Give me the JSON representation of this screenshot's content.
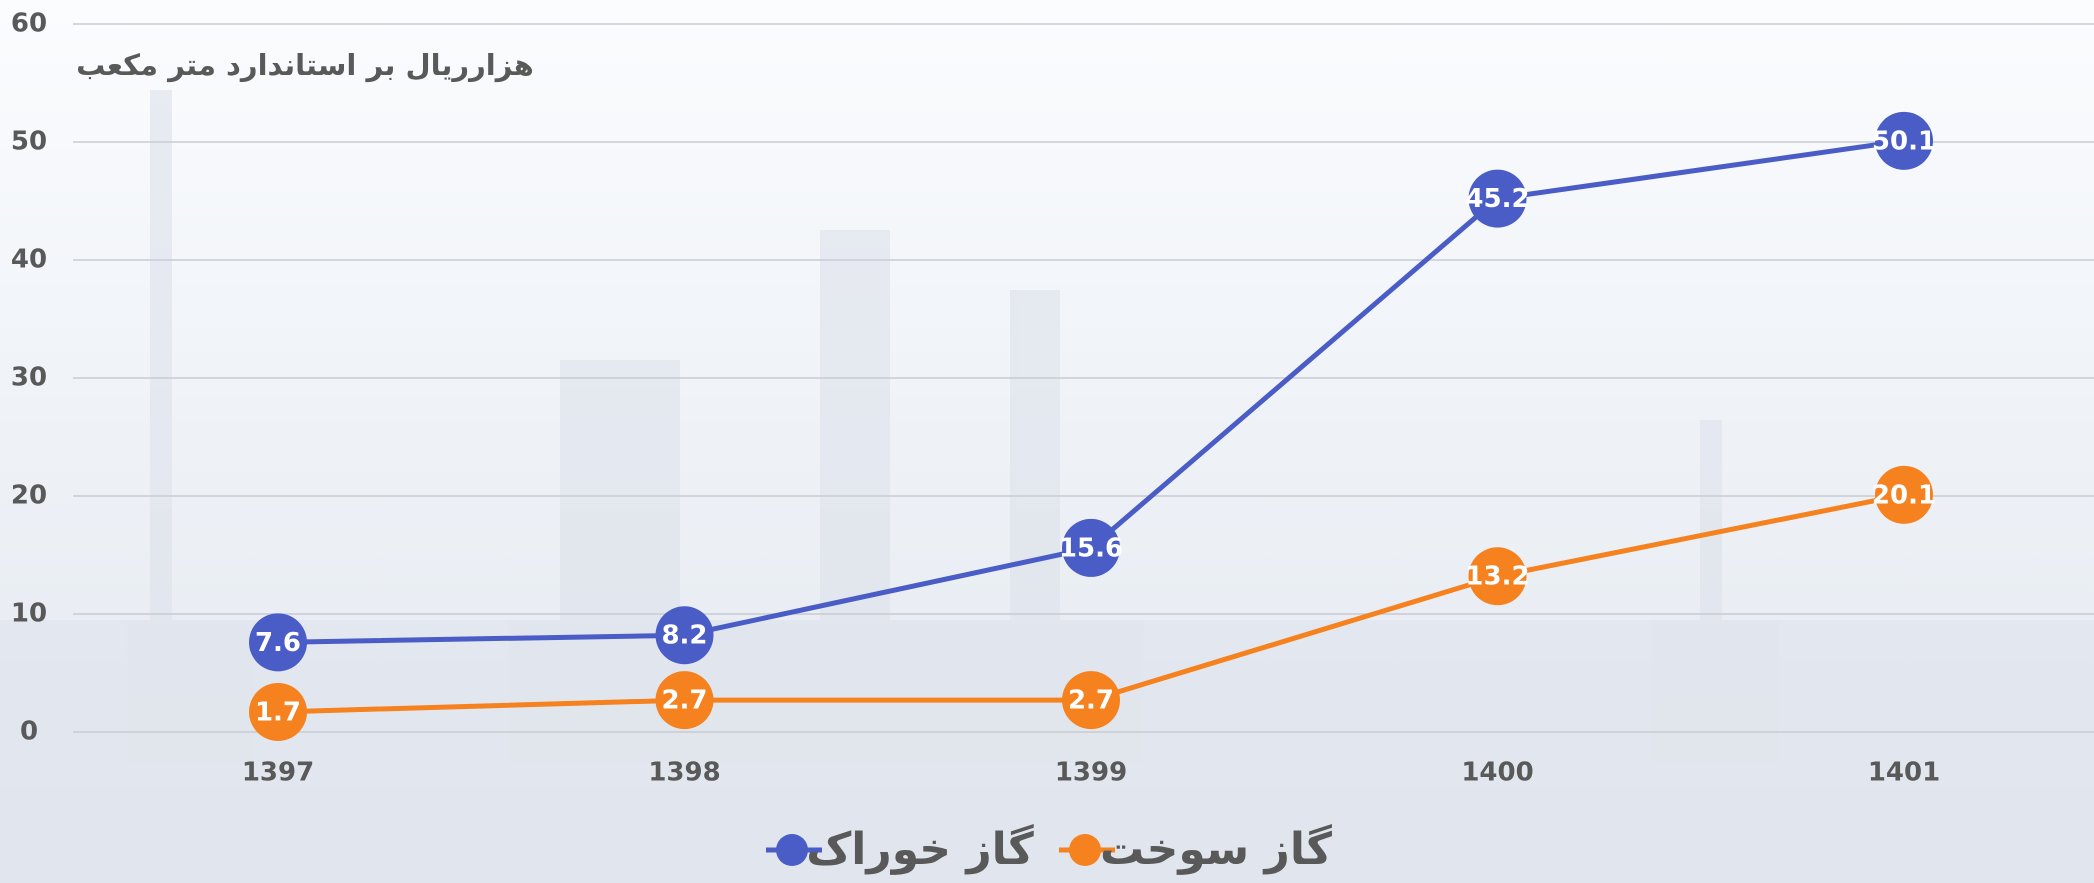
{
  "chart_data": {
    "type": "line",
    "y_label": "هزارریال بر استاندارد متر مکعب",
    "categories": [
      "1397",
      "1398",
      "1399",
      "1400",
      "1401"
    ],
    "series": [
      {
        "name": "گاز خوراک",
        "color": "#4a5cc6",
        "values": [
          7.6,
          8.2,
          15.6,
          45.2,
          50.1
        ]
      },
      {
        "name": "گاز سوخت",
        "color": "#f5821f",
        "values": [
          1.7,
          2.7,
          2.7,
          13.2,
          20.1
        ]
      }
    ],
    "ylim": [
      0,
      60
    ],
    "yticks": [
      0,
      10,
      20,
      30,
      40,
      50,
      60
    ],
    "grid": true
  }
}
